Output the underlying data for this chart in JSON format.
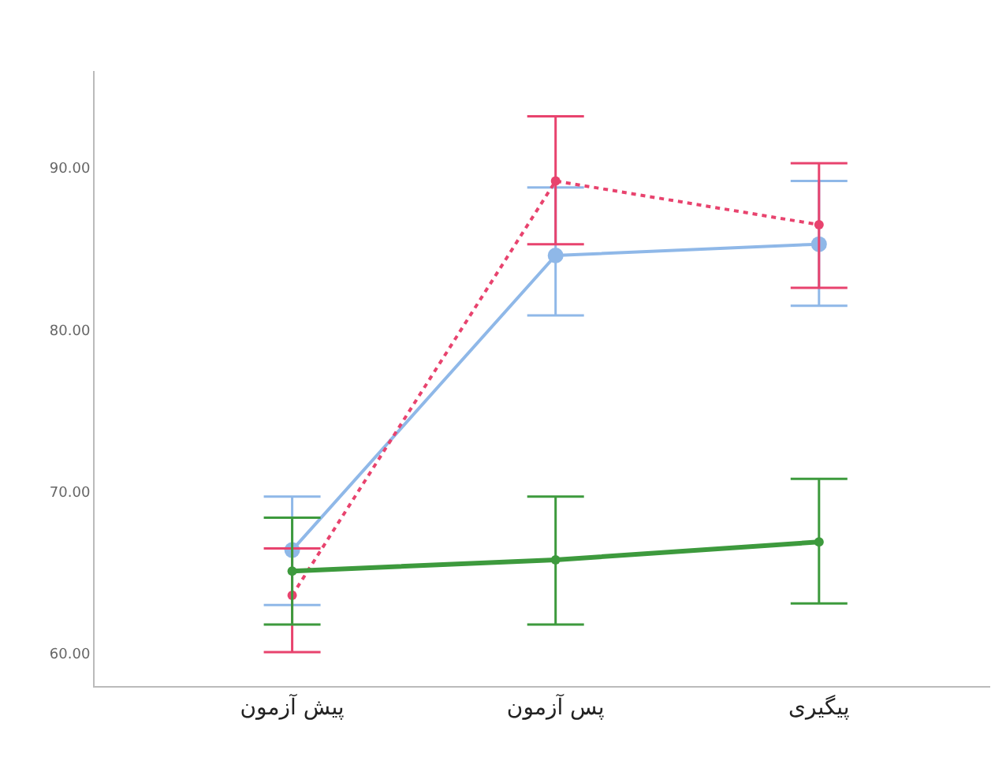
{
  "chart_data": {
    "type": "line",
    "categories": [
      "پیش آزمون",
      "پس آزمون",
      "پیگیری"
    ],
    "series": [
      {
        "color": "#8fb8e8",
        "values": [
          66.4,
          84.6,
          85.3
        ],
        "errors": [
          [
            63.0,
            69.7
          ],
          [
            80.9,
            88.8
          ],
          [
            81.5,
            89.2
          ]
        ],
        "line_style": "solid"
      },
      {
        "color": "#e8436e",
        "values": [
          63.6,
          89.2,
          86.5
        ],
        "errors": [
          [
            60.1,
            66.5
          ],
          [
            85.3,
            93.2
          ],
          [
            82.6,
            90.3
          ]
        ],
        "line_style": "dotted"
      },
      {
        "color": "#3d9a3d",
        "values": [
          65.1,
          65.8,
          66.9
        ],
        "errors": [
          [
            61.8,
            68.4
          ],
          [
            61.8,
            69.7
          ],
          [
            63.1,
            70.8
          ]
        ],
        "line_style": "solid"
      }
    ],
    "ylim": [
      58,
      96
    ],
    "yticks": [
      {
        "value": 60,
        "label": "60.00"
      },
      {
        "value": 70,
        "label": "70.00"
      },
      {
        "value": 80,
        "label": "80.00"
      },
      {
        "value": 90,
        "label": "90.00"
      }
    ],
    "marker": "circle",
    "legend": false
  }
}
